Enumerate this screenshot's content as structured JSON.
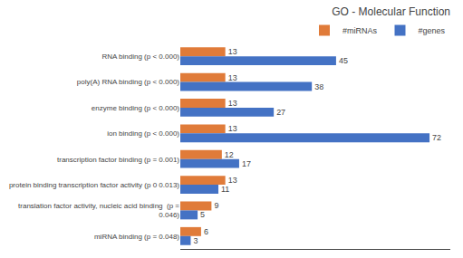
{
  "chart_data": {
    "type": "bar",
    "orientation": "horizontal",
    "title": "GO - Molecular Function",
    "categories": [
      "RNA binding (p < 0.000)",
      "poly(A) RNA binding (p < 0.000)",
      "enzyme binding (p < 0.000)",
      "ion binding (p < 0.000)",
      "transcription factor binding (p = 0.001)",
      "protein binding transcription factor activity (p 0 0.013)",
      "translation factor activity, nucleic acid binding  (p =\n0.046)",
      "miRNA binding (p = 0.048)"
    ],
    "series": [
      {
        "name": "#miRNAs",
        "color": "#e07b39",
        "values": [
          13,
          13,
          13,
          13,
          12,
          13,
          9,
          6
        ]
      },
      {
        "name": "#genes",
        "color": "#4472c4",
        "values": [
          45,
          38,
          27,
          72,
          17,
          11,
          5,
          3
        ]
      }
    ],
    "xlim": [
      0,
      78
    ],
    "data_labels": true,
    "tick_labels": "y",
    "grid": false,
    "legend": "upper right"
  }
}
